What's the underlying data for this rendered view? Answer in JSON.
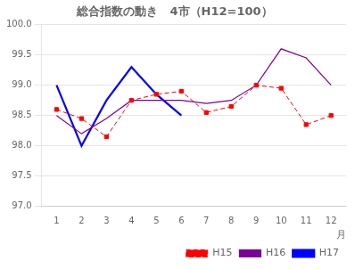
{
  "chart_data": {
    "type": "line",
    "title": "総合指数の動き　4市（H12=100）",
    "xlabel": "月",
    "xlim": [
      0.4,
      12.6
    ],
    "xticks": [
      1,
      2,
      3,
      4,
      5,
      6,
      7,
      8,
      9,
      10,
      11,
      12
    ],
    "ylim": [
      97.0,
      100.0
    ],
    "yticks": [
      {
        "value": 97.0,
        "label": "97.0"
      },
      97.5,
      {
        "value": 98.0,
        "label": "98.0"
      },
      98.5,
      {
        "value": 99.0,
        "label": "99.0"
      },
      99.5,
      {
        "value": 100.0,
        "label": "100.0"
      }
    ],
    "grid": "y",
    "legend": "lower right",
    "series": [
      {
        "name": "H15",
        "color": "#ff0000",
        "marker": "square",
        "line_style": "dashed",
        "x": [
          1,
          2,
          3,
          4,
          5,
          6,
          7,
          8,
          9,
          10,
          11,
          12
        ],
        "values": [
          98.6,
          98.45,
          98.15,
          98.75,
          98.85,
          98.9,
          98.55,
          98.65,
          99.0,
          98.95,
          98.35,
          98.5
        ]
      },
      {
        "name": "H16",
        "color": "#7b0099",
        "line_style": "solid",
        "x": [
          1,
          2,
          3,
          4,
          5,
          6,
          7,
          8,
          9,
          10,
          11,
          12
        ],
        "values": [
          98.5,
          98.2,
          98.45,
          98.75,
          98.75,
          98.75,
          98.7,
          98.75,
          99.0,
          99.6,
          99.45,
          99.0
        ]
      },
      {
        "name": "H17",
        "color": "#0000ff",
        "line_style": "solid",
        "x": [
          1,
          2,
          3,
          4,
          5,
          6
        ],
        "values": [
          99.0,
          98.0,
          98.75,
          99.3,
          98.85,
          98.5
        ]
      }
    ]
  }
}
